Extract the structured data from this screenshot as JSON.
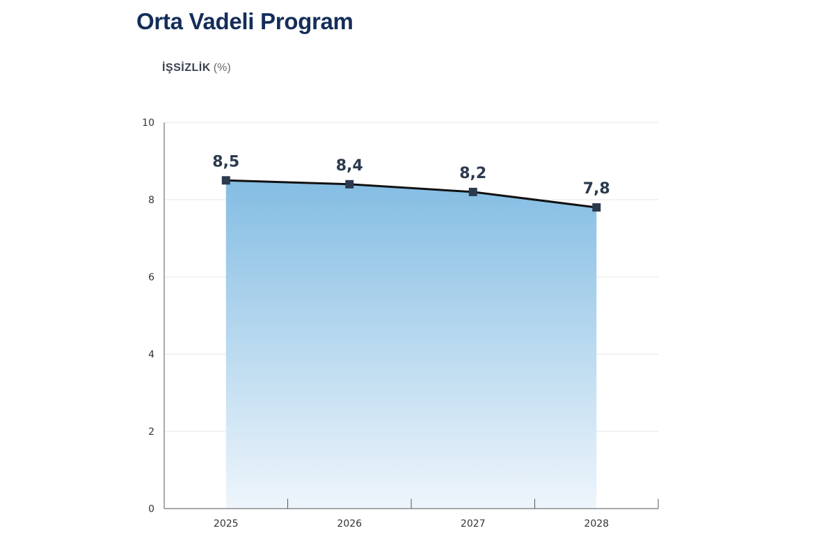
{
  "header": {
    "title": "Orta Vadeli Program"
  },
  "chart_data": {
    "type": "area",
    "title": "İŞSİZLİK",
    "unit": "(%)",
    "categories": [
      "2025",
      "2026",
      "2027",
      "2028"
    ],
    "values": [
      8.5,
      8.4,
      8.2,
      7.8
    ],
    "data_labels": [
      "8,5",
      "8,4",
      "8,2",
      "7,8"
    ],
    "yticks": [
      "0",
      "2",
      "4",
      "6",
      "8",
      "10"
    ],
    "ylim": [
      0,
      10
    ],
    "grid": true,
    "colors": {
      "fill_top": "#84bde3",
      "fill_bottom": "#eef5fb",
      "line": "#111111",
      "marker": "#2b3a4e"
    }
  }
}
